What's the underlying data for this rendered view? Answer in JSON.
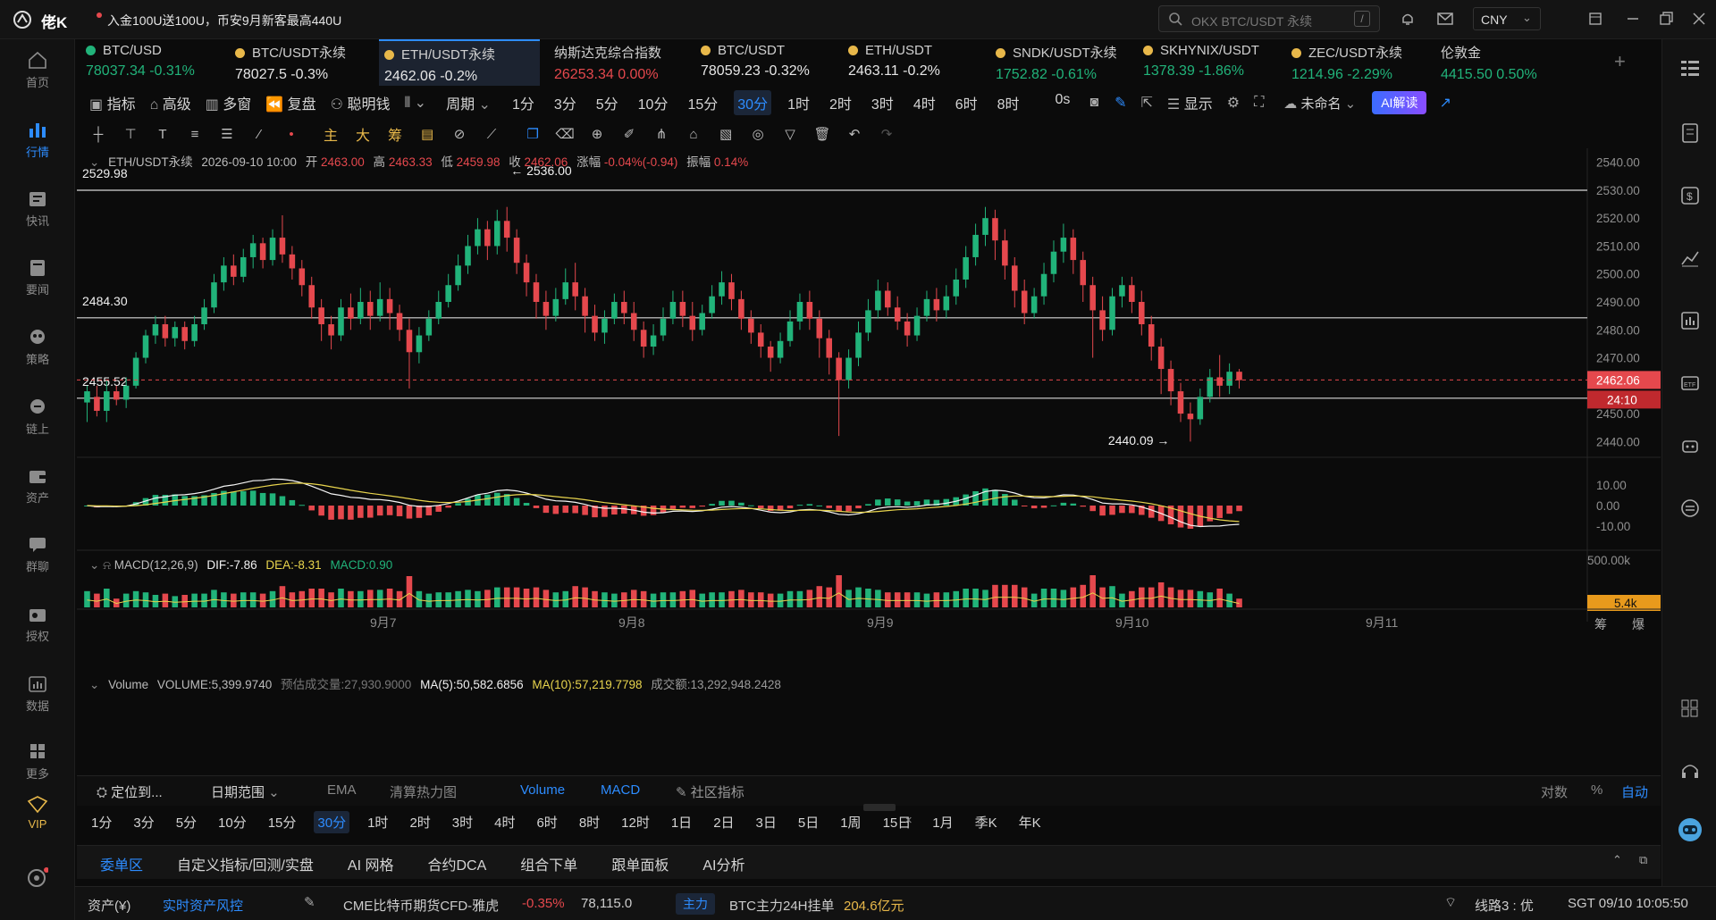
{
  "app": {
    "name": "佬K",
    "promo": "入金100U送100U，币安9月新客最高440U"
  },
  "search": {
    "placeholder": "OKX BTC/USDT 永续",
    "shortcut": "/"
  },
  "currency": "CNY",
  "left_nav": [
    {
      "label": "首页",
      "icon": "home-icon"
    },
    {
      "label": "行情",
      "icon": "market-icon",
      "active": true
    },
    {
      "label": "快讯",
      "icon": "flash-icon"
    },
    {
      "label": "要闻",
      "icon": "news-icon"
    },
    {
      "label": "策略",
      "icon": "strategy-icon"
    },
    {
      "label": "链上",
      "icon": "chain-icon"
    },
    {
      "label": "资产",
      "icon": "wallet-icon"
    },
    {
      "label": "群聊",
      "icon": "chat-icon"
    },
    {
      "label": "授权",
      "icon": "key-icon"
    },
    {
      "label": "数据",
      "icon": "data-icon"
    },
    {
      "label": "更多",
      "icon": "more-icon"
    },
    {
      "label": "VIP",
      "icon": "vip-icon"
    }
  ],
  "tickers": [
    {
      "name": "BTC/USD",
      "price": "78037.34",
      "change": "-0.31%",
      "dir": "up"
    },
    {
      "name": "BTC/USDT永续",
      "price": "78027.5",
      "change": "-0.3%",
      "dir": "neutral"
    },
    {
      "name": "ETH/USDT永续",
      "price": "2462.06",
      "change": "-0.2%",
      "dir": "neutral",
      "active": true
    },
    {
      "name": "纳斯达克综合指数",
      "price": "26253.34",
      "change": "0.00%",
      "dir": "dn"
    },
    {
      "name": "BTC/USDT",
      "price": "78059.23",
      "change": "-0.32%",
      "dir": "neutral"
    },
    {
      "name": "ETH/USDT",
      "price": "2463.11",
      "change": "-0.2%",
      "dir": "neutral"
    },
    {
      "name": "SNDK/USDT永续",
      "price": "1752.82",
      "change": "-0.61%",
      "dir": "up"
    },
    {
      "name": "SKHYNIX/USDT",
      "price": "1378.39",
      "change": "-1.86%",
      "dir": "up"
    },
    {
      "name": "ZEC/USDT永续",
      "price": "1214.96",
      "change": "-2.29%",
      "dir": "up"
    },
    {
      "name": "伦敦金",
      "price": "4415.50",
      "change": "0.50%",
      "dir": "up"
    }
  ],
  "toolbar": {
    "indicator": "指标",
    "advanced": "高级",
    "multi": "多窗",
    "replay": "复盘",
    "smart": "聪明钱",
    "period": "周期",
    "timeframes": [
      "1分",
      "3分",
      "5分",
      "10分",
      "15分",
      "30分",
      "1时",
      "2时",
      "3时",
      "4时",
      "6时",
      "8时",
      "0s"
    ],
    "selected_tf": "30分",
    "display": "显示",
    "layout_name": "未命名",
    "ai_button": "AI解读"
  },
  "drawbar": {
    "labels": [
      "主",
      "大",
      "筹"
    ]
  },
  "ohlc": {
    "symbol": "ETH/USDT永续",
    "datetime": "2026-09-10 10:00",
    "open_label": "开",
    "open": "2463.00",
    "high_label": "高",
    "high": "2463.33",
    "low_label": "低",
    "low": "2459.98",
    "close_label": "收",
    "close": "2462.06",
    "chg_label": "涨幅",
    "chg": "-0.04%(-0.94)",
    "amp_label": "振幅",
    "amp": "0.14%"
  },
  "macd": {
    "title": "MACD(12,26,9)",
    "dif": "DIF:-7.86",
    "dea": "DEA:-8.31",
    "macd": "MACD:0.90",
    "axis": [
      "10.00",
      "0.00",
      "-10.00"
    ]
  },
  "volume": {
    "title": "Volume",
    "vol": "VOLUME:5,399.9740",
    "est": "预估成交量:27,930.9000",
    "ma5": "MA(5):50,582.6856",
    "ma10": "MA(10):57,219.7798",
    "amount": "成交额:13,292,948.2428",
    "axis_top": "500.00k",
    "current": "5.4k"
  },
  "price_axis": [
    "2540.00",
    "2530.00",
    "2520.00",
    "2510.00",
    "2500.00",
    "2490.00",
    "2480.00",
    "2470.00",
    "2450.00",
    "2440.00"
  ],
  "last_price": "2462.06",
  "countdown": "24:10",
  "hlines": [
    "2529.98",
    "2484.30",
    "2455.52"
  ],
  "annotations": {
    "high": "2536.00",
    "low": "2440.09"
  },
  "date_labels": [
    "9月7",
    "9月8",
    "9月9",
    "9月10",
    "9月11"
  ],
  "axis_corner": [
    "筹",
    "爆"
  ],
  "bottom_bar": {
    "locate": "定位到...",
    "date_range": "日期范围",
    "indicators": [
      "EMA",
      "清算热力图",
      "Volume",
      "MACD"
    ],
    "community": "社区指标",
    "log": "对数",
    "pct": "%",
    "auto": "自动",
    "periods": [
      "1分",
      "3分",
      "5分",
      "10分",
      "15分",
      "30分",
      "1时",
      "2时",
      "3时",
      "4时",
      "6时",
      "8时",
      "12时",
      "1日",
      "2日",
      "3日",
      "5日",
      "1周",
      "15日",
      "1月",
      "季K",
      "年K"
    ],
    "selected_period": "30分"
  },
  "panel_tabs": [
    "委单区",
    "自定义指标/回测/实盘",
    "AI 网格",
    "合约DCA",
    "组合下单",
    "跟单面板",
    "AI分析"
  ],
  "status": {
    "assets": "资产(¥)",
    "risk": "实时资产风控",
    "cme": "CME比特币期货CFD-雅虎",
    "cme_chg": "-0.35%",
    "cme_price": "78,115.0",
    "main_badge": "主力",
    "btc_orders": "BTC主力24H挂单",
    "btc_amount": "204.6亿元",
    "line": "线路3 : 优",
    "time": "SGT 09/10 10:05:50"
  },
  "colors": {
    "up": "#21b37a",
    "down": "#e5484d",
    "accent": "#2d8cff",
    "dif": "#f5f5f5",
    "dea": "#e8d44d"
  },
  "chart_data": {
    "type": "candlestick",
    "symbol": "ETH/USDT永续",
    "interval": "30分",
    "ylim": [
      2435,
      2545
    ],
    "candles": [
      [
        2454,
        2458,
        2447,
        2460
      ],
      [
        2456,
        2451,
        2449,
        2460
      ],
      [
        2451,
        2458,
        2447,
        2462
      ],
      [
        2458,
        2455,
        2453,
        2460
      ],
      [
        2455,
        2460,
        2452,
        2463
      ],
      [
        2460,
        2470,
        2459,
        2472
      ],
      [
        2470,
        2478,
        2468,
        2480
      ],
      [
        2478,
        2482,
        2475,
        2485
      ],
      [
        2482,
        2477,
        2474,
        2485
      ],
      [
        2477,
        2481,
        2474,
        2483
      ],
      [
        2481,
        2476,
        2473,
        2483
      ],
      [
        2476,
        2482,
        2474,
        2485
      ],
      [
        2482,
        2488,
        2480,
        2491
      ],
      [
        2488,
        2497,
        2486,
        2500
      ],
      [
        2497,
        2503,
        2494,
        2506
      ],
      [
        2503,
        2499,
        2496,
        2507
      ],
      [
        2499,
        2506,
        2497,
        2509
      ],
      [
        2506,
        2511,
        2502,
        2514
      ],
      [
        2511,
        2505,
        2502,
        2513
      ],
      [
        2505,
        2513,
        2503,
        2516
      ],
      [
        2513,
        2507,
        2504,
        2521
      ],
      [
        2507,
        2502,
        2498,
        2510
      ],
      [
        2502,
        2496,
        2492,
        2505
      ],
      [
        2496,
        2488,
        2484,
        2499
      ],
      [
        2488,
        2482,
        2476,
        2491
      ],
      [
        2482,
        2478,
        2473,
        2485
      ],
      [
        2478,
        2488,
        2476,
        2491
      ],
      [
        2488,
        2484,
        2480,
        2493
      ],
      [
        2484,
        2490,
        2482,
        2495
      ],
      [
        2490,
        2485,
        2480,
        2494
      ],
      [
        2485,
        2491,
        2483,
        2497
      ],
      [
        2491,
        2486,
        2480,
        2495
      ],
      [
        2486,
        2480,
        2476,
        2489
      ],
      [
        2480,
        2472,
        2459,
        2484
      ],
      [
        2472,
        2478,
        2468,
        2481
      ],
      [
        2478,
        2484,
        2476,
        2487
      ],
      [
        2484,
        2490,
        2482,
        2494
      ],
      [
        2490,
        2496,
        2488,
        2500
      ],
      [
        2496,
        2503,
        2494,
        2507
      ],
      [
        2503,
        2510,
        2500,
        2514
      ],
      [
        2510,
        2516,
        2507,
        2520
      ],
      [
        2516,
        2510,
        2505,
        2519
      ],
      [
        2510,
        2519,
        2507,
        2523
      ],
      [
        2519,
        2513,
        2508,
        2524
      ],
      [
        2513,
        2504,
        2500,
        2516
      ],
      [
        2504,
        2497,
        2492,
        2507
      ],
      [
        2497,
        2490,
        2484,
        2500
      ],
      [
        2490,
        2485,
        2480,
        2494
      ],
      [
        2485,
        2491,
        2483,
        2495
      ],
      [
        2491,
        2497,
        2489,
        2502
      ],
      [
        2497,
        2492,
        2487,
        2504
      ],
      [
        2492,
        2485,
        2479,
        2495
      ],
      [
        2485,
        2479,
        2476,
        2489
      ],
      [
        2479,
        2484,
        2475,
        2487
      ],
      [
        2484,
        2490,
        2482,
        2493
      ],
      [
        2490,
        2486,
        2482,
        2494
      ],
      [
        2486,
        2480,
        2476,
        2490
      ],
      [
        2480,
        2474,
        2470,
        2483
      ],
      [
        2474,
        2478,
        2471,
        2482
      ],
      [
        2478,
        2484,
        2476,
        2488
      ],
      [
        2484,
        2490,
        2482,
        2494
      ],
      [
        2490,
        2485,
        2481,
        2494
      ],
      [
        2485,
        2480,
        2476,
        2490
      ],
      [
        2480,
        2486,
        2478,
        2489
      ],
      [
        2486,
        2492,
        2484,
        2496
      ],
      [
        2492,
        2497,
        2489,
        2501
      ],
      [
        2497,
        2491,
        2487,
        2500
      ],
      [
        2491,
        2484,
        2480,
        2494
      ],
      [
        2484,
        2479,
        2475,
        2487
      ],
      [
        2479,
        2474,
        2470,
        2482
      ],
      [
        2474,
        2470,
        2465,
        2476
      ],
      [
        2470,
        2476,
        2468,
        2479
      ],
      [
        2476,
        2483,
        2474,
        2487
      ],
      [
        2483,
        2490,
        2480,
        2493
      ],
      [
        2490,
        2484,
        2480,
        2494
      ],
      [
        2484,
        2477,
        2470,
        2487
      ],
      [
        2477,
        2470,
        2464,
        2480
      ],
      [
        2470,
        2462,
        2442,
        2472
      ],
      [
        2462,
        2470,
        2459,
        2473
      ],
      [
        2470,
        2479,
        2467,
        2483
      ],
      [
        2479,
        2487,
        2476,
        2491
      ],
      [
        2487,
        2494,
        2484,
        2498
      ],
      [
        2494,
        2488,
        2485,
        2497
      ],
      [
        2488,
        2483,
        2480,
        2492
      ],
      [
        2483,
        2478,
        2474,
        2486
      ],
      [
        2478,
        2485,
        2476,
        2488
      ],
      [
        2485,
        2491,
        2483,
        2494
      ],
      [
        2491,
        2487,
        2483,
        2495
      ],
      [
        2487,
        2492,
        2484,
        2496
      ],
      [
        2492,
        2498,
        2489,
        2502
      ],
      [
        2498,
        2506,
        2495,
        2510
      ],
      [
        2506,
        2514,
        2503,
        2518
      ],
      [
        2514,
        2520,
        2510,
        2524
      ],
      [
        2520,
        2512,
        2505,
        2523
      ],
      [
        2512,
        2503,
        2498,
        2516
      ],
      [
        2503,
        2494,
        2488,
        2506
      ],
      [
        2494,
        2486,
        2482,
        2498
      ],
      [
        2486,
        2492,
        2484,
        2495
      ],
      [
        2492,
        2500,
        2489,
        2504
      ],
      [
        2500,
        2508,
        2497,
        2512
      ],
      [
        2508,
        2513,
        2504,
        2518
      ],
      [
        2513,
        2505,
        2500,
        2516
      ],
      [
        2505,
        2496,
        2490,
        2508
      ],
      [
        2496,
        2487,
        2470,
        2499
      ],
      [
        2487,
        2480,
        2476,
        2492
      ],
      [
        2480,
        2492,
        2478,
        2495
      ],
      [
        2492,
        2496,
        2488,
        2499
      ],
      [
        2496,
        2490,
        2486,
        2499
      ],
      [
        2490,
        2482,
        2478,
        2494
      ],
      [
        2482,
        2474,
        2469,
        2485
      ],
      [
        2474,
        2466,
        2457,
        2477
      ],
      [
        2466,
        2458,
        2453,
        2469
      ],
      [
        2458,
        2450,
        2447,
        2461
      ],
      [
        2450,
        2448,
        2440,
        2454
      ],
      [
        2448,
        2456,
        2446,
        2459
      ],
      [
        2456,
        2463,
        2454,
        2466
      ],
      [
        2463,
        2460,
        2456,
        2471
      ],
      [
        2460,
        2465,
        2457,
        2468
      ],
      [
        2465,
        2462,
        2459,
        2466
      ]
    ]
  }
}
